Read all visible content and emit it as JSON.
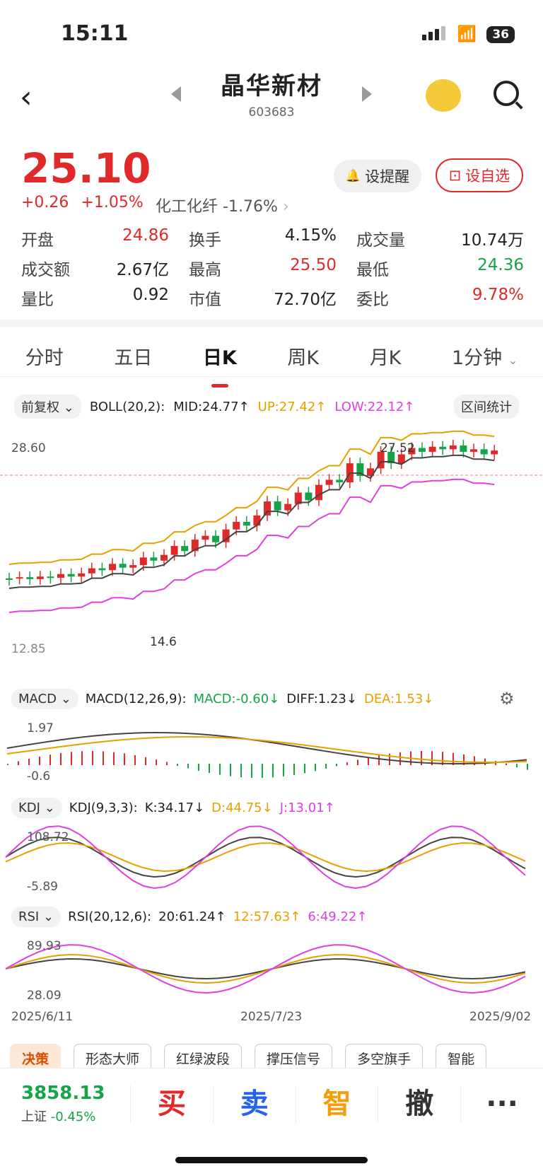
{
  "status": {
    "time": "15:11",
    "battery": "36"
  },
  "header": {
    "name": "晶华新材",
    "code": "603683"
  },
  "quote": {
    "price": "25.10",
    "change": "+0.26",
    "change_pct": "+1.05%",
    "sector": "化工化纤",
    "sector_pct": "-1.76%",
    "remind_label": "设提醒",
    "watch_label": "设自选"
  },
  "stats": [
    [
      {
        "label": "开盘",
        "value": "24.86",
        "color": "red"
      },
      {
        "label": "换手",
        "value": "4.15%",
        "color": ""
      },
      {
        "label": "成交量",
        "value": "10.74万",
        "color": ""
      }
    ],
    [
      {
        "label": "成交额",
        "value": "2.67亿",
        "color": ""
      },
      {
        "label": "最高",
        "value": "25.50",
        "color": "red"
      },
      {
        "label": "最低",
        "value": "24.36",
        "color": "green"
      }
    ],
    [
      {
        "label": "量比",
        "value": "0.92",
        "color": ""
      },
      {
        "label": "市值",
        "value": "72.70亿",
        "color": ""
      },
      {
        "label": "委比",
        "value": "9.78%",
        "color": "red"
      }
    ]
  ],
  "tabs": [
    "分时",
    "五日",
    "日K",
    "周K",
    "月K",
    "1分钟"
  ],
  "kline": {
    "fq_label": "前复权",
    "boll_label": "BOLL(20,2):",
    "mid": "MID:24.77↑",
    "up": "UP:27.42↑",
    "low": "LOW:22.12↑",
    "range_stat": "区间统计",
    "y_top": "28.60",
    "y_bottom": "12.85",
    "high_marker": "27.52",
    "low_marker": "14.6"
  },
  "macd": {
    "label": "MACD",
    "params": "MACD(12,26,9):",
    "macd": "MACD:-0.60↓",
    "diff": "DIFF:1.23↓",
    "dea": "DEA:1.53↓",
    "y_top": "1.97",
    "y_bottom": "-0.6"
  },
  "kdj": {
    "label": "KDJ",
    "params": "KDJ(9,3,3):",
    "k": "K:34.17↓",
    "d": "D:44.75↓",
    "j": "J:13.01↑",
    "y_top": "108.72",
    "y_bottom": "-5.89"
  },
  "rsi": {
    "label": "RSI",
    "params": "RSI(20,12,6):",
    "r1": "20:61.24↑",
    "r2": "12:57.63↑",
    "r3": "6:49.22↑",
    "y_top": "89.93",
    "y_bottom": "28.09"
  },
  "dates": [
    "2025/6/11",
    "2025/7/23",
    "2025/9/02"
  ],
  "tags": [
    "决策",
    "形态大师",
    "红绿波段",
    "撑压信号",
    "多空旗手",
    "智能"
  ],
  "footer": {
    "index_val": "3858.13",
    "index_name": "上证",
    "index_pct": "-0.45%",
    "buy": "买",
    "sell": "卖",
    "smart": "智",
    "cancel": "撤",
    "more": "···"
  },
  "colors": {
    "up": "#e02a2a",
    "down": "#16a34a",
    "ma_mid": "#444444",
    "ma_up": "#e6a100",
    "ma_low": "#e040e0"
  }
}
